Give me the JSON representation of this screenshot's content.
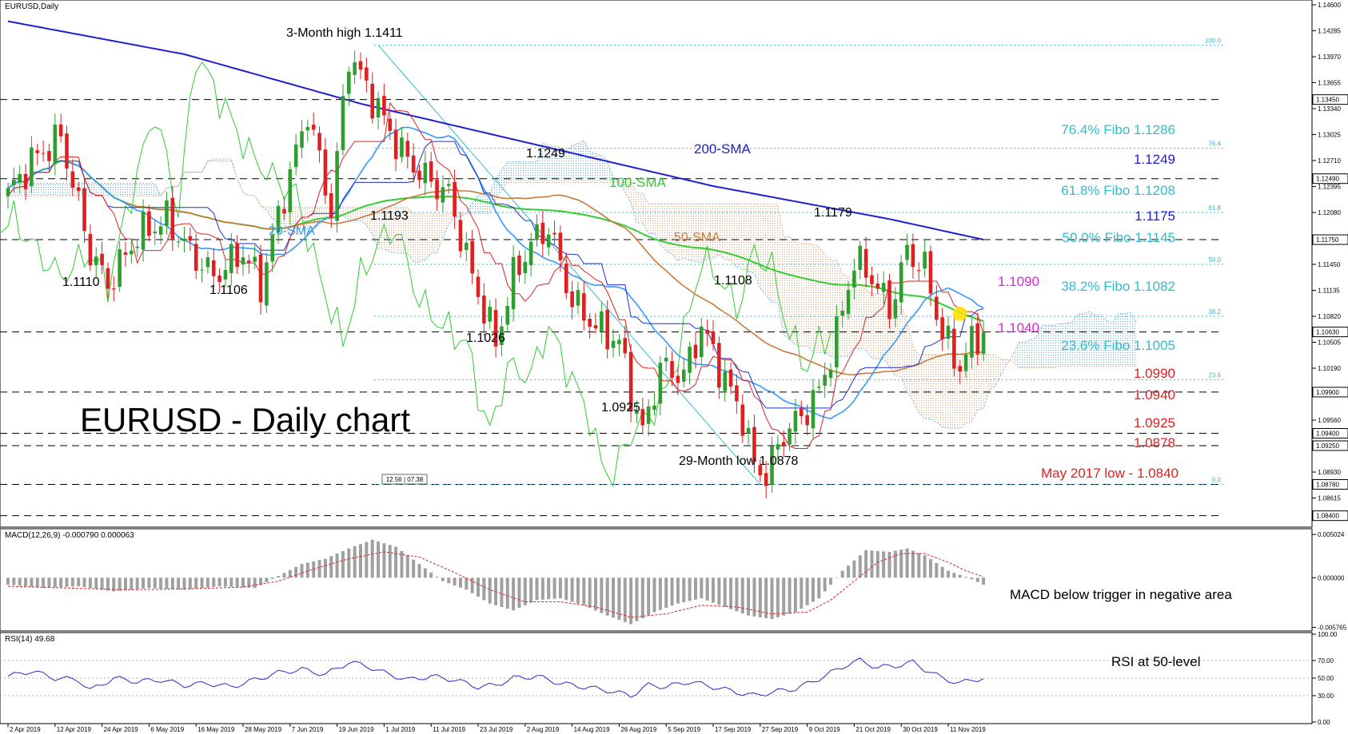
{
  "window": {
    "symbol_label": "EURUSD,Daily",
    "chart_title": "EURUSD - Daily chart"
  },
  "colors": {
    "bull": "#2e9e2e",
    "bear": "#e02020",
    "sma20": "#3399ff",
    "sma50": "#c87a3c",
    "sma100": "#33cc33",
    "sma200": "#1f1fd0",
    "tenkan": "#e02020",
    "kijun": "#1f2fd0",
    "chikou": "#33cc33",
    "cloud_bull": "#55aadd",
    "cloud_bear": "#e8a070",
    "fibo": "#33bbcc",
    "macd_hist": "#a0a0a0",
    "macd_signal": "#e02020",
    "rsi": "#2a2ac8",
    "annotation_blue": "#1f1fd0",
    "annotation_red": "#e02020",
    "annotation_magenta": "#dd22dd",
    "annotation_green": "#33cc33",
    "annotation_orange": "#c87a3c",
    "annotation_cyan": "#33bbcc",
    "highlight": "#ffe000"
  },
  "chart_data": [
    {
      "type": "candlestick",
      "panel": "price",
      "symbol": "EURUSD",
      "timeframe": "Daily",
      "ylim": [
        1.083,
        1.146
      ],
      "y_ticks": [
        "1.14600",
        "1.14285",
        "1.13970",
        "1.13655",
        "1.13340",
        "1.13025",
        "1.12710",
        "1.12395",
        "1.12080",
        "1.11765",
        "1.11450",
        "1.11135",
        "1.10820",
        "1.10505",
        "1.10190",
        "1.09875",
        "1.09560",
        "1.09245",
        "1.08930",
        "1.08615"
      ],
      "price_tags": [
        {
          "label": "1.13450",
          "value": 1.1345
        },
        {
          "label": "1.12490",
          "value": 1.1249
        },
        {
          "label": "1.11750",
          "value": 1.1175
        },
        {
          "label": "1.10630",
          "value": 1.1063
        },
        {
          "label": "1.09900",
          "value": 1.099
        },
        {
          "label": "1.09400",
          "value": 1.094
        },
        {
          "label": "1.09250",
          "value": 1.0925
        },
        {
          "label": "1.08780",
          "value": 1.0878
        },
        {
          "label": "1.08400",
          "value": 1.084
        }
      ],
      "x_labels": [
        {
          "label": "2 Apr 2019",
          "bar": 0
        },
        {
          "label": "12 Apr 2019",
          "bar": 8
        },
        {
          "label": "24 Apr 2019",
          "bar": 16
        },
        {
          "label": "6 May 2019",
          "bar": 24
        },
        {
          "label": "16 May 2019",
          "bar": 32
        },
        {
          "label": "28 May 2019",
          "bar": 40
        },
        {
          "label": "7 Jun 2019",
          "bar": 48
        },
        {
          "label": "19 Jun 2019",
          "bar": 56
        },
        {
          "label": "1 Jul 2019",
          "bar": 64
        },
        {
          "label": "11 Jul 2019",
          "bar": 72
        },
        {
          "label": "23 Jul 2019",
          "bar": 80
        },
        {
          "label": "2 Aug 2019",
          "bar": 88
        },
        {
          "label": "14 Aug 2019",
          "bar": 96
        },
        {
          "label": "26 Aug 2019",
          "bar": 104
        },
        {
          "label": "5 Sep 2019",
          "bar": 112
        },
        {
          "label": "17 Sep 2019",
          "bar": 120
        },
        {
          "label": "27 Sep 2019",
          "bar": 128
        },
        {
          "label": "9 Oct 2019",
          "bar": 136
        },
        {
          "label": "21 Oct 2019",
          "bar": 144
        },
        {
          "label": "30 Oct 2019",
          "bar": 152
        },
        {
          "label": "11 Nov 2019",
          "bar": 160
        }
      ],
      "close_anchors": [
        [
          0,
          1.123
        ],
        [
          4,
          1.127
        ],
        [
          9,
          1.13
        ],
        [
          14,
          1.116
        ],
        [
          17,
          1.112
        ],
        [
          22,
          1.118
        ],
        [
          27,
          1.12
        ],
        [
          31,
          1.116
        ],
        [
          35,
          1.113
        ],
        [
          40,
          1.116
        ],
        [
          43,
          1.112
        ],
        [
          47,
          1.123
        ],
        [
          51,
          1.133
        ],
        [
          55,
          1.121
        ],
        [
          58,
          1.14
        ],
        [
          61,
          1.136
        ],
        [
          64,
          1.132
        ],
        [
          67,
          1.128
        ],
        [
          71,
          1.125
        ],
        [
          75,
          1.123
        ],
        [
          79,
          1.113
        ],
        [
          83,
          1.105
        ],
        [
          86,
          1.113
        ],
        [
          89,
          1.117
        ],
        [
          92,
          1.119
        ],
        [
          96,
          1.11
        ],
        [
          100,
          1.107
        ],
        [
          104,
          1.105
        ],
        [
          106,
          1.099
        ],
        [
          108,
          1.094
        ],
        [
          111,
          1.102
        ],
        [
          115,
          1.101
        ],
        [
          118,
          1.107
        ],
        [
          121,
          1.102
        ],
        [
          125,
          1.096
        ],
        [
          127,
          1.09
        ],
        [
          129,
          1.089
        ],
        [
          132,
          1.094
        ],
        [
          135,
          1.096
        ],
        [
          138,
          1.099
        ],
        [
          141,
          1.106
        ],
        [
          144,
          1.115
        ],
        [
          147,
          1.113
        ],
        [
          150,
          1.109
        ],
        [
          153,
          1.116
        ],
        [
          156,
          1.114
        ],
        [
          159,
          1.106
        ],
        [
          162,
          1.102
        ],
        [
          164,
          1.105
        ],
        [
          166,
          1.1063
        ]
      ],
      "overlays": [
        {
          "name": "20-SMA",
          "type": "sma",
          "period": 20
        },
        {
          "name": "50-SMA",
          "type": "sma",
          "period": 50
        },
        {
          "name": "100-SMA",
          "type": "sma",
          "period": 100
        },
        {
          "name": "200-SMA",
          "type": "line",
          "points": [
            [
              0,
              1.144
            ],
            [
              30,
              1.14
            ],
            [
              60,
              1.134
            ],
            [
              90,
              1.129
            ],
            [
              120,
              1.124
            ],
            [
              150,
              1.12
            ],
            [
              166,
              1.1175
            ]
          ]
        },
        {
          "name": "tenkan",
          "type": "ichimoku_tenkan"
        },
        {
          "name": "kijun",
          "type": "ichimoku_kijun"
        },
        {
          "name": "chikou",
          "type": "ichimoku_chikou"
        },
        {
          "name": "kumo",
          "type": "ichimoku_cloud"
        }
      ],
      "fibonacci": {
        "from_bar": 63,
        "to_bar": 166,
        "levels": [
          {
            "pct": "100.0",
            "value": 1.1411
          },
          {
            "pct": "76.4",
            "value": 1.1286
          },
          {
            "pct": "61.8",
            "value": 1.1208
          },
          {
            "pct": "50.0",
            "value": 1.1145
          },
          {
            "pct": "38.2",
            "value": 1.1082
          },
          {
            "pct": "23.6",
            "value": 1.1005
          },
          {
            "pct": "0.0",
            "value": 1.0878
          }
        ]
      },
      "support_resistance": [
        1.1345,
        1.1249,
        1.1175,
        1.1063,
        1.099,
        1.094,
        1.0925,
        1.0878,
        1.084
      ],
      "trendline": {
        "from": [
          63,
          1.1411
        ],
        "to": [
          128,
          1.0878
        ]
      },
      "highlight_point": {
        "bar": 162,
        "value": 1.1085
      },
      "annotations": {
        "three_month_high": "3-Month high 1.1411",
        "low_29_month": "29-Month low 1.0878",
        "p1110": "1.1110",
        "p1106": "1.1106",
        "p1193": "1.1193",
        "p1249_top": "1.1249",
        "p1026": "1.1026",
        "p0925": "1.0925",
        "p1108": "1.1108",
        "p1179": "1.1179",
        "sma200_label": "200-SMA",
        "sma100_label": "100-SMA",
        "sma50_label": "50-SMA",
        "sma20_label": "20-SMA",
        "fibo764": "76.4% Fibo 1.1286",
        "fibo618": "61.8% Fibo 1.1208",
        "fibo500": "50.0% Fibo 1.1145",
        "fibo382": "38.2% Fibo 1.1082",
        "fibo236": "23.6% Fibo 1.1005",
        "r1249": "1.1249",
        "r1175": "1.1175",
        "m1090": "1.1090",
        "m1040": "1.1040",
        "s0990": "1.0990",
        "s0940": "1.0940",
        "s0925": "1.0925",
        "s0878": "1.0878",
        "may2017": "May 2017 low - 1.0840",
        "time_box": "12.56 | 07.38"
      }
    },
    {
      "type": "histogram",
      "panel": "macd",
      "indicator_label": "MACD(12,26,9) -0.000790 0.000063",
      "ylim": [
        -0.006,
        0.0055
      ],
      "y_ticks": [
        "0.005024",
        "0.000000",
        "-0.005765"
      ],
      "hist_anchors": [
        [
          0,
          -0.0008
        ],
        [
          6,
          -0.0012
        ],
        [
          12,
          -0.001
        ],
        [
          18,
          -0.0016
        ],
        [
          24,
          -0.0012
        ],
        [
          30,
          -0.0014
        ],
        [
          36,
          -0.001
        ],
        [
          42,
          -0.0012
        ],
        [
          46,
          0.0002
        ],
        [
          50,
          0.0016
        ],
        [
          54,
          0.0022
        ],
        [
          58,
          0.0034
        ],
        [
          62,
          0.0044
        ],
        [
          66,
          0.0036
        ],
        [
          70,
          0.0016
        ],
        [
          74,
          -0.0004
        ],
        [
          78,
          -0.0014
        ],
        [
          82,
          -0.003
        ],
        [
          86,
          -0.0038
        ],
        [
          90,
          -0.0026
        ],
        [
          94,
          -0.0024
        ],
        [
          98,
          -0.0032
        ],
        [
          102,
          -0.0044
        ],
        [
          106,
          -0.0054
        ],
        [
          110,
          -0.004
        ],
        [
          114,
          -0.003
        ],
        [
          118,
          -0.0024
        ],
        [
          122,
          -0.0034
        ],
        [
          126,
          -0.0044
        ],
        [
          130,
          -0.0048
        ],
        [
          134,
          -0.004
        ],
        [
          138,
          -0.0024
        ],
        [
          142,
          0.0008
        ],
        [
          146,
          0.0032
        ],
        [
          150,
          0.003
        ],
        [
          153,
          0.0034
        ],
        [
          156,
          0.0026
        ],
        [
          160,
          0.0008
        ],
        [
          163,
          0.0001
        ],
        [
          166,
          -0.0008
        ]
      ],
      "signal_anchors": [
        [
          0,
          -0.001
        ],
        [
          10,
          -0.0012
        ],
        [
          20,
          -0.0014
        ],
        [
          30,
          -0.0013
        ],
        [
          40,
          -0.0011
        ],
        [
          46,
          -0.0004
        ],
        [
          52,
          0.001
        ],
        [
          58,
          0.0022
        ],
        [
          64,
          0.003
        ],
        [
          70,
          0.0024
        ],
        [
          76,
          0.0006
        ],
        [
          82,
          -0.0014
        ],
        [
          88,
          -0.0028
        ],
        [
          94,
          -0.0028
        ],
        [
          100,
          -0.0034
        ],
        [
          106,
          -0.0046
        ],
        [
          112,
          -0.0042
        ],
        [
          118,
          -0.0032
        ],
        [
          124,
          -0.0034
        ],
        [
          130,
          -0.0042
        ],
        [
          136,
          -0.004
        ],
        [
          140,
          -0.0026
        ],
        [
          144,
          -0.0004
        ],
        [
          148,
          0.0018
        ],
        [
          152,
          0.0028
        ],
        [
          156,
          0.0028
        ],
        [
          160,
          0.0018
        ],
        [
          163,
          0.0008
        ],
        [
          166,
          0.0001
        ]
      ],
      "note": "MACD below trigger in negative area"
    },
    {
      "type": "line",
      "panel": "rsi",
      "indicator_label": "RSI(14) 49.68",
      "ylim": [
        0,
        100
      ],
      "y_ticks": [
        "100.00",
        "70.00",
        "50.00",
        "30.00",
        "0.00"
      ],
      "rsi_anchors": [
        [
          0,
          52
        ],
        [
          4,
          58
        ],
        [
          8,
          50
        ],
        [
          12,
          48
        ],
        [
          14,
          36
        ],
        [
          18,
          50
        ],
        [
          22,
          46
        ],
        [
          26,
          48
        ],
        [
          30,
          42
        ],
        [
          34,
          44
        ],
        [
          38,
          40
        ],
        [
          42,
          48
        ],
        [
          46,
          56
        ],
        [
          50,
          60
        ],
        [
          54,
          54
        ],
        [
          58,
          68
        ],
        [
          61,
          64
        ],
        [
          64,
          56
        ],
        [
          68,
          48
        ],
        [
          72,
          52
        ],
        [
          76,
          48
        ],
        [
          80,
          40
        ],
        [
          83,
          42
        ],
        [
          86,
          50
        ],
        [
          90,
          52
        ],
        [
          94,
          44
        ],
        [
          98,
          40
        ],
        [
          102,
          36
        ],
        [
          106,
          30
        ],
        [
          109,
          42
        ],
        [
          112,
          40
        ],
        [
          116,
          46
        ],
        [
          120,
          40
        ],
        [
          124,
          34
        ],
        [
          127,
          30
        ],
        [
          130,
          34
        ],
        [
          134,
          38
        ],
        [
          137,
          46
        ],
        [
          140,
          56
        ],
        [
          143,
          66
        ],
        [
          145,
          70
        ],
        [
          148,
          62
        ],
        [
          151,
          64
        ],
        [
          154,
          68
        ],
        [
          156,
          60
        ],
        [
          159,
          50
        ],
        [
          162,
          44
        ],
        [
          164,
          48
        ],
        [
          166,
          49.68
        ]
      ],
      "note": "RSI at 50-level"
    }
  ]
}
